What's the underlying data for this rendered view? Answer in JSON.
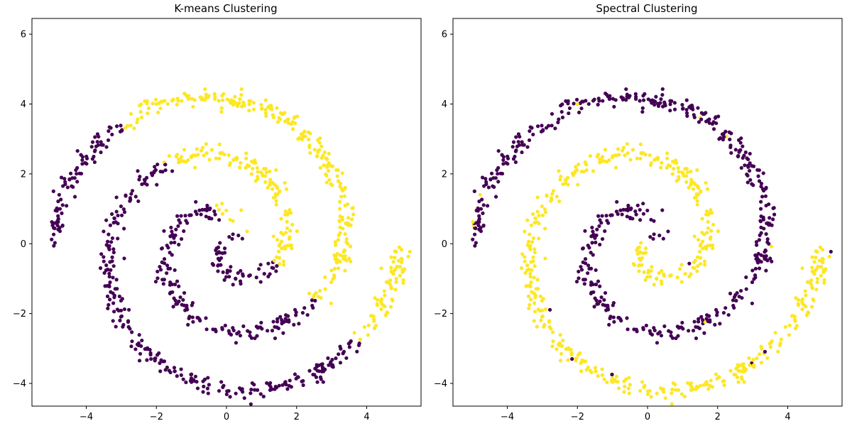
{
  "colors": {
    "cluster_0": "#440154",
    "cluster_1": "#fde725"
  },
  "chart_data": [
    {
      "type": "scatter",
      "title": "K-means Clustering",
      "xlabel": "",
      "ylabel": "",
      "xlim": [
        -5.55,
        5.55
      ],
      "ylim": [
        -4.65,
        6.45
      ],
      "xticks": [
        -4,
        -2,
        0,
        2,
        4
      ],
      "yticks": [
        -4,
        -2,
        0,
        2,
        4,
        6
      ],
      "grid": false,
      "point_generation": {
        "a": 0,
        "b": 5,
        "theta_max": 9.4248,
        "count": 520,
        "noise": 0.13,
        "seed": 7
      },
      "labeling": "kmeans",
      "kmeans_split": {
        "normal_x": 1.0,
        "normal_y": 1.1,
        "offset": 0.75
      }
    },
    {
      "type": "scatter",
      "title": "Spectral Clustering",
      "xlabel": "",
      "ylabel": "",
      "xlim": [
        -5.55,
        5.55
      ],
      "ylim": [
        -4.65,
        6.45
      ],
      "xticks": [
        -4,
        -2,
        0,
        2,
        4
      ],
      "yticks": [
        -4,
        -2,
        0,
        2,
        4,
        6
      ],
      "grid": false,
      "point_generation": {
        "a": 0,
        "b": 5,
        "theta_max": 9.4248,
        "count": 520,
        "noise": 0.13,
        "seed": 7
      },
      "labeling": "spectral",
      "spectral_flip_rate": 0.012
    }
  ]
}
